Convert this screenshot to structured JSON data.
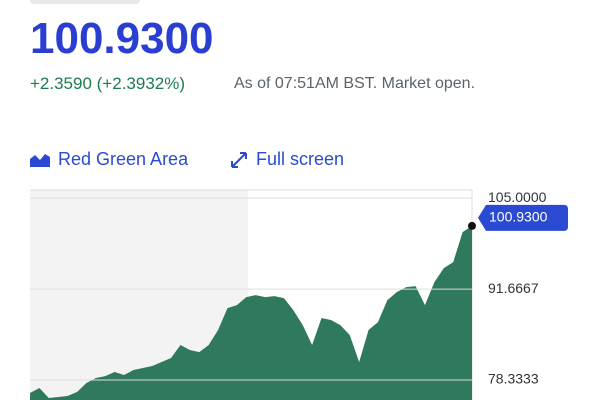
{
  "header": {
    "price": "100.9300",
    "change": "+2.3590 (+2.3932%)",
    "status": "As of 07:51AM BST. Market open."
  },
  "toolbar": {
    "chart_style": "Red Green Area",
    "full_screen": "Full screen"
  },
  "chart_data": {
    "type": "area",
    "color": "#2f7a5d",
    "values": [
      76.43,
      77.16,
      75.7,
      75.84,
      75.99,
      76.57,
      77.89,
      78.62,
      78.91,
      79.5,
      79.06,
      79.8,
      80.09,
      80.38,
      80.97,
      81.56,
      83.46,
      82.73,
      82.43,
      83.46,
      85.66,
      88.88,
      89.32,
      90.49,
      90.79,
      90.49,
      90.64,
      90.35,
      88.59,
      86.39,
      83.46,
      87.42,
      87.13,
      86.39,
      84.93,
      80.97,
      85.66,
      86.83,
      90.05,
      91.23,
      91.96,
      92.11,
      89.32,
      92.69,
      94.74,
      95.62,
      100.02,
      100.93
    ],
    "value_labels": [
      null,
      null,
      null,
      null,
      null,
      null,
      null,
      null,
      null,
      null,
      null,
      null,
      null,
      null,
      null,
      null,
      null,
      null,
      null,
      null,
      null,
      null,
      null,
      null,
      null,
      null,
      null,
      null,
      null,
      null,
      null,
      null,
      null,
      null,
      null,
      null,
      null,
      null,
      null,
      null,
      null,
      null,
      null,
      null,
      null,
      null,
      null,
      "100.9300"
    ],
    "ylim": [
      75.4,
      106.2
    ],
    "yticks": [
      {
        "value": 105,
        "label": "105.0000"
      },
      {
        "value": 91.6667,
        "label": "91.6667"
      },
      {
        "value": 78.3333,
        "label": "78.3333"
      }
    ],
    "grid": true
  }
}
